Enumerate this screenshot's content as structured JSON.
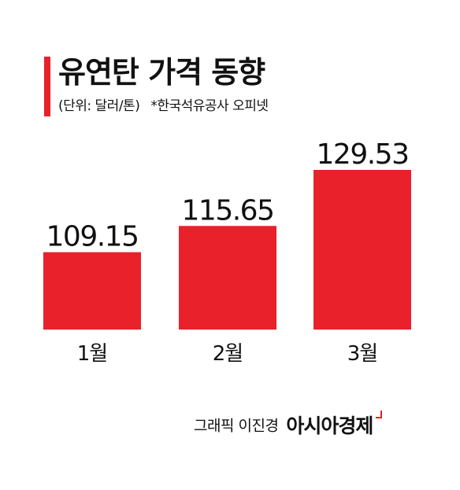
{
  "title": "유연탄 가격 동향",
  "unit_note": "(단위: 달러/톤)",
  "source_note": "*한국석유공사 오피넷",
  "credit": {
    "artist": "그래픽 이진경",
    "brand": "아시아경제"
  },
  "colors": {
    "accent": "#e8212b",
    "bar": "#e8212b",
    "text": "#111111"
  },
  "chart_data": {
    "type": "bar",
    "title": "유연탄 가격 동향",
    "categories": [
      "1월",
      "2월",
      "3월"
    ],
    "values": [
      109.15,
      115.65,
      129.53
    ],
    "value_labels": [
      "109.15",
      "115.65",
      "129.53"
    ],
    "xlabel": "",
    "ylabel": "",
    "grid": false,
    "legend": "none"
  }
}
